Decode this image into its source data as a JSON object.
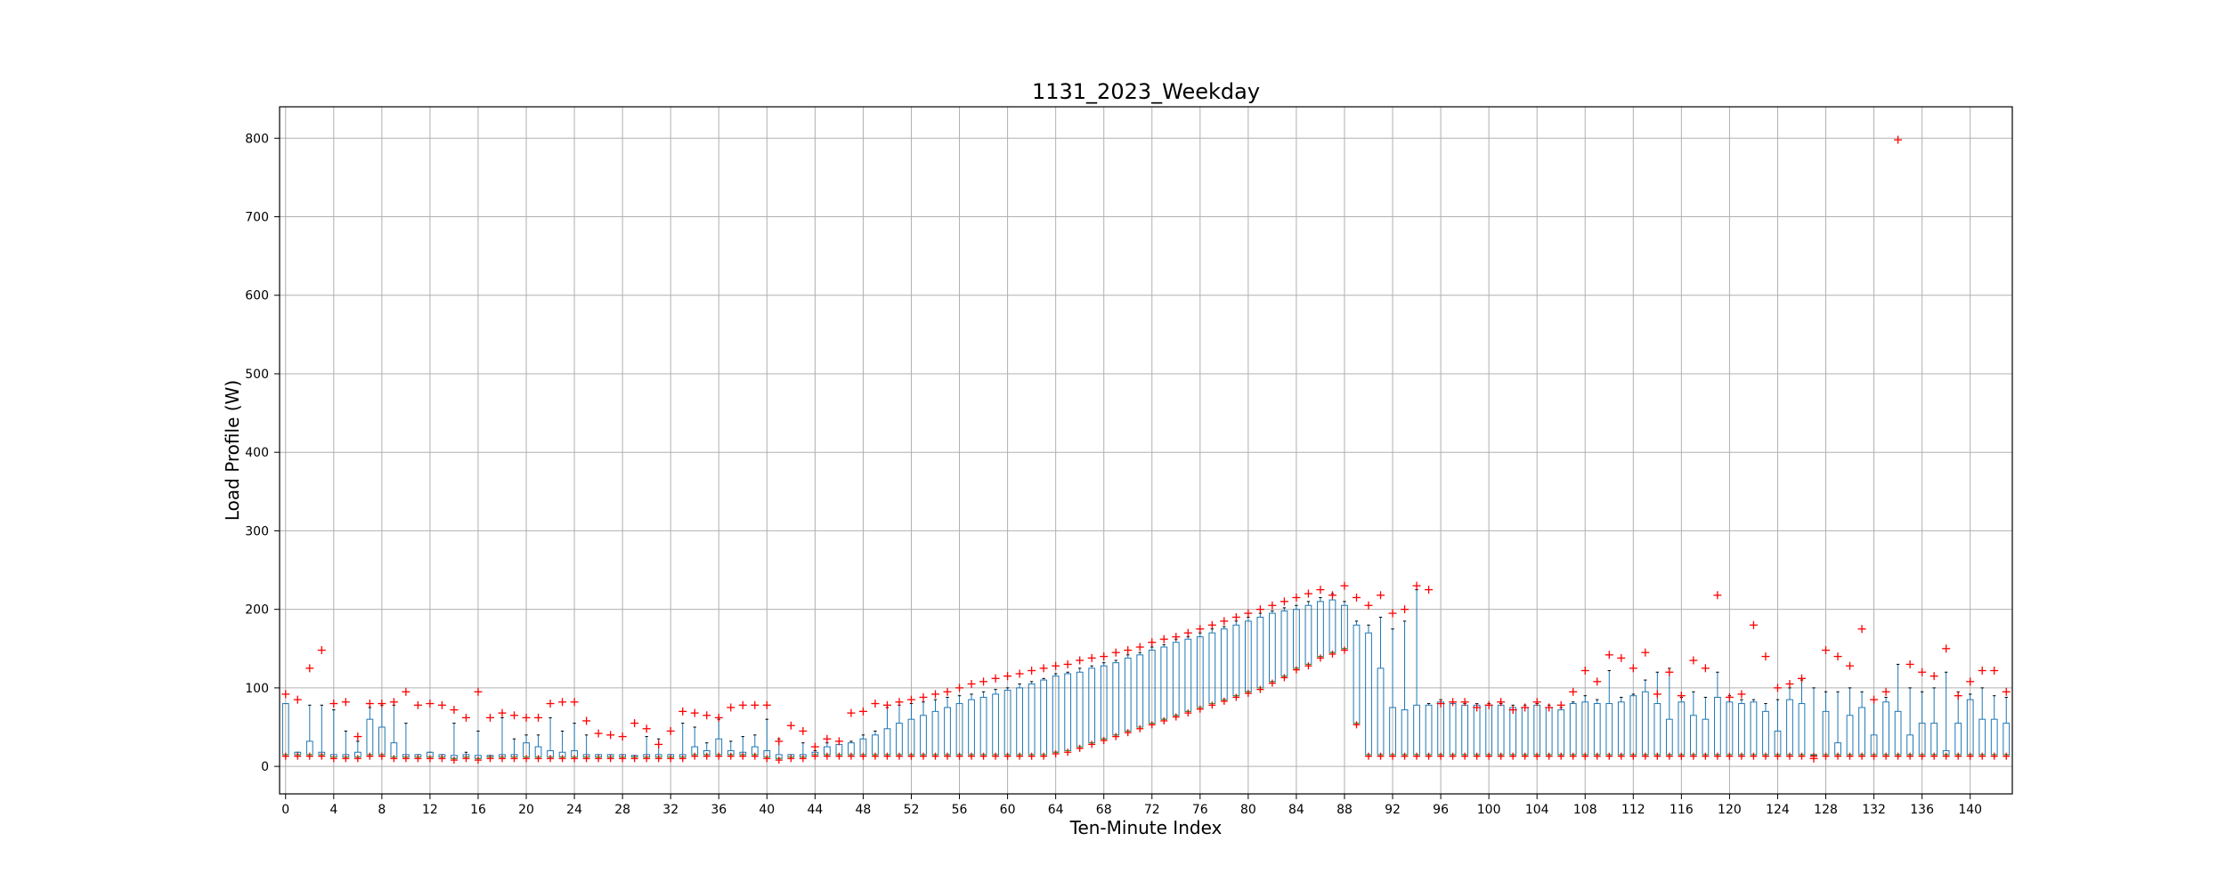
{
  "chart_data": {
    "type": "box",
    "title": "1131_2023_Weekday",
    "xlabel": "Ten-Minute Index",
    "ylabel": "Load Profile (W)",
    "xlim": [
      -0.5,
      143.5
    ],
    "ylim": [
      -35,
      840
    ],
    "x_ticks": [
      0,
      4,
      8,
      12,
      16,
      20,
      24,
      28,
      32,
      36,
      40,
      44,
      48,
      52,
      56,
      60,
      64,
      68,
      72,
      76,
      80,
      84,
      88,
      92,
      96,
      100,
      104,
      108,
      112,
      116,
      120,
      124,
      128,
      132,
      136,
      140
    ],
    "y_ticks": [
      0,
      100,
      200,
      300,
      400,
      500,
      600,
      700,
      800
    ],
    "grid": true,
    "colors": {
      "box": "#1f77b4",
      "median": "#2ca02c",
      "flier": "#ff0000",
      "grid": "#b0b0b0"
    },
    "boxes": [
      [
        0,
        15,
        15,
        80,
        80,
        92
      ],
      [
        1,
        15,
        15,
        18,
        18,
        85
      ],
      [
        2,
        15,
        15,
        32,
        78,
        125
      ],
      [
        3,
        15,
        15,
        18,
        78,
        148
      ],
      [
        4,
        12,
        12,
        15,
        72,
        80
      ],
      [
        5,
        12,
        12,
        15,
        45,
        82
      ],
      [
        6,
        12,
        12,
        18,
        32,
        38
      ],
      [
        7,
        15,
        15,
        60,
        75,
        80
      ],
      [
        8,
        15,
        15,
        50,
        78,
        80
      ],
      [
        9,
        12,
        12,
        30,
        78,
        82
      ],
      [
        10,
        12,
        12,
        15,
        55,
        95
      ],
      [
        11,
        12,
        12,
        15,
        15,
        78
      ],
      [
        12,
        12,
        12,
        18,
        18,
        80
      ],
      [
        13,
        12,
        12,
        15,
        15,
        78
      ],
      [
        14,
        10,
        10,
        14,
        55,
        72
      ],
      [
        15,
        12,
        12,
        15,
        18,
        62
      ],
      [
        16,
        10,
        10,
        14,
        45,
        95
      ],
      [
        17,
        12,
        12,
        14,
        14,
        62
      ],
      [
        18,
        12,
        12,
        15,
        62,
        68
      ],
      [
        19,
        12,
        12,
        15,
        35,
        65
      ],
      [
        20,
        12,
        12,
        30,
        40,
        62
      ],
      [
        21,
        12,
        12,
        25,
        40,
        62
      ],
      [
        22,
        12,
        12,
        20,
        62,
        80
      ],
      [
        23,
        12,
        12,
        18,
        45,
        82
      ],
      [
        24,
        12,
        12,
        20,
        55,
        82
      ],
      [
        25,
        12,
        12,
        15,
        40,
        58
      ],
      [
        26,
        12,
        12,
        15,
        15,
        42
      ],
      [
        27,
        12,
        12,
        15,
        15,
        40
      ],
      [
        28,
        12,
        12,
        15,
        15,
        38
      ],
      [
        29,
        12,
        12,
        14,
        14,
        55
      ],
      [
        30,
        12,
        12,
        15,
        38,
        48
      ],
      [
        31,
        12,
        12,
        15,
        35,
        28
      ],
      [
        32,
        12,
        12,
        15,
        15,
        45
      ],
      [
        33,
        12,
        12,
        15,
        55,
        70
      ],
      [
        34,
        15,
        15,
        25,
        50,
        68
      ],
      [
        35,
        15,
        15,
        20,
        30,
        65
      ],
      [
        36,
        15,
        15,
        35,
        60,
        62
      ],
      [
        37,
        15,
        15,
        20,
        32,
        75
      ],
      [
        38,
        15,
        15,
        18,
        38,
        78
      ],
      [
        39,
        15,
        15,
        25,
        40,
        78
      ],
      [
        40,
        12,
        12,
        20,
        60,
        78
      ],
      [
        41,
        10,
        10,
        15,
        35,
        32
      ],
      [
        42,
        12,
        12,
        15,
        15,
        52
      ],
      [
        43,
        12,
        12,
        15,
        30,
        45
      ],
      [
        44,
        15,
        15,
        18,
        20,
        25
      ],
      [
        45,
        15,
        15,
        25,
        30,
        35
      ],
      [
        46,
        15,
        15,
        28,
        32,
        32
      ],
      [
        47,
        15,
        15,
        30,
        32,
        68
      ],
      [
        48,
        15,
        15,
        35,
        40,
        70
      ],
      [
        49,
        15,
        15,
        40,
        45,
        80
      ],
      [
        50,
        15,
        15,
        48,
        75,
        78
      ],
      [
        51,
        15,
        15,
        55,
        78,
        82
      ],
      [
        52,
        15,
        15,
        60,
        80,
        85
      ],
      [
        53,
        15,
        15,
        65,
        82,
        88
      ],
      [
        54,
        15,
        15,
        70,
        85,
        92
      ],
      [
        55,
        15,
        15,
        75,
        88,
        95
      ],
      [
        56,
        15,
        15,
        80,
        90,
        100
      ],
      [
        57,
        15,
        15,
        85,
        92,
        105
      ],
      [
        58,
        15,
        15,
        88,
        95,
        108
      ],
      [
        59,
        15,
        15,
        92,
        98,
        112
      ],
      [
        60,
        15,
        15,
        97,
        100,
        115
      ],
      [
        61,
        15,
        15,
        100,
        105,
        118
      ],
      [
        62,
        15,
        15,
        105,
        108,
        122
      ],
      [
        63,
        15,
        15,
        110,
        112,
        125
      ],
      [
        64,
        18,
        18,
        115,
        118,
        128
      ],
      [
        65,
        20,
        20,
        118,
        120,
        130
      ],
      [
        66,
        25,
        25,
        120,
        125,
        135
      ],
      [
        67,
        30,
        30,
        125,
        128,
        138
      ],
      [
        68,
        35,
        35,
        128,
        132,
        140
      ],
      [
        69,
        40,
        40,
        132,
        135,
        145
      ],
      [
        70,
        45,
        45,
        138,
        142,
        148
      ],
      [
        71,
        50,
        50,
        142,
        145,
        152
      ],
      [
        72,
        55,
        55,
        148,
        152,
        158
      ],
      [
        73,
        60,
        60,
        152,
        155,
        162
      ],
      [
        74,
        65,
        65,
        158,
        162,
        165
      ],
      [
        75,
        70,
        70,
        162,
        165,
        170
      ],
      [
        76,
        75,
        75,
        165,
        170,
        175
      ],
      [
        77,
        80,
        80,
        170,
        175,
        180
      ],
      [
        78,
        85,
        85,
        175,
        178,
        185
      ],
      [
        79,
        90,
        90,
        180,
        185,
        190
      ],
      [
        80,
        95,
        95,
        185,
        190,
        195
      ],
      [
        81,
        100,
        100,
        190,
        195,
        200
      ],
      [
        82,
        108,
        108,
        195,
        198,
        205
      ],
      [
        83,
        115,
        115,
        198,
        202,
        210
      ],
      [
        84,
        125,
        125,
        200,
        205,
        215
      ],
      [
        85,
        130,
        130,
        205,
        210,
        220
      ],
      [
        86,
        140,
        140,
        210,
        215,
        225
      ],
      [
        87,
        145,
        145,
        212,
        220,
        218
      ],
      [
        88,
        150,
        150,
        205,
        210,
        230
      ],
      [
        89,
        55,
        55,
        180,
        185,
        215
      ],
      [
        90,
        15,
        15,
        170,
        180,
        205
      ],
      [
        91,
        15,
        15,
        125,
        190,
        218
      ],
      [
        92,
        15,
        15,
        75,
        175,
        195
      ],
      [
        93,
        15,
        15,
        72,
        185,
        200
      ],
      [
        94,
        15,
        15,
        78,
        225,
        230
      ],
      [
        95,
        15,
        15,
        78,
        80,
        225
      ],
      [
        96,
        15,
        15,
        82,
        85,
        80
      ],
      [
        97,
        15,
        15,
        80,
        82,
        82
      ],
      [
        98,
        15,
        15,
        78,
        80,
        82
      ],
      [
        99,
        15,
        15,
        78,
        80,
        75
      ],
      [
        100,
        15,
        15,
        78,
        80,
        78
      ],
      [
        101,
        15,
        15,
        78,
        80,
        82
      ],
      [
        102,
        15,
        15,
        75,
        78,
        72
      ],
      [
        103,
        15,
        15,
        75,
        78,
        75
      ],
      [
        104,
        15,
        15,
        78,
        80,
        82
      ],
      [
        105,
        15,
        15,
        75,
        78,
        75
      ],
      [
        106,
        15,
        15,
        72,
        75,
        78
      ],
      [
        107,
        15,
        15,
        80,
        82,
        95
      ],
      [
        108,
        15,
        15,
        82,
        90,
        122
      ],
      [
        109,
        15,
        15,
        80,
        85,
        108
      ],
      [
        110,
        15,
        15,
        80,
        122,
        142
      ],
      [
        111,
        15,
        15,
        82,
        88,
        138
      ],
      [
        112,
        15,
        15,
        90,
        92,
        125
      ],
      [
        113,
        15,
        15,
        95,
        110,
        145
      ],
      [
        114,
        15,
        15,
        80,
        120,
        92
      ],
      [
        115,
        15,
        15,
        60,
        125,
        120
      ],
      [
        116,
        15,
        15,
        82,
        88,
        90
      ],
      [
        117,
        15,
        15,
        65,
        95,
        135
      ],
      [
        118,
        15,
        15,
        60,
        88,
        125
      ],
      [
        119,
        15,
        15,
        88,
        120,
        218
      ],
      [
        120,
        15,
        15,
        82,
        90,
        88
      ],
      [
        121,
        15,
        15,
        80,
        85,
        92
      ],
      [
        122,
        15,
        15,
        82,
        85,
        180
      ],
      [
        123,
        15,
        15,
        70,
        80,
        140
      ],
      [
        124,
        15,
        15,
        45,
        85,
        100
      ],
      [
        125,
        15,
        15,
        85,
        100,
        105
      ],
      [
        126,
        15,
        15,
        80,
        110,
        112
      ],
      [
        127,
        15,
        15,
        15,
        100,
        10
      ],
      [
        128,
        15,
        15,
        70,
        95,
        148
      ],
      [
        129,
        15,
        15,
        30,
        95,
        140
      ],
      [
        130,
        15,
        15,
        65,
        100,
        128
      ],
      [
        131,
        15,
        15,
        75,
        95,
        175
      ],
      [
        132,
        15,
        15,
        40,
        85,
        85
      ],
      [
        133,
        15,
        15,
        82,
        88,
        95
      ],
      [
        134,
        15,
        15,
        70,
        130,
        798
      ],
      [
        135,
        15,
        15,
        40,
        100,
        130
      ],
      [
        136,
        15,
        15,
        55,
        95,
        120
      ],
      [
        137,
        15,
        15,
        55,
        100,
        115
      ],
      [
        138,
        15,
        15,
        20,
        120,
        150
      ],
      [
        139,
        15,
        15,
        55,
        95,
        90
      ],
      [
        140,
        15,
        15,
        85,
        92,
        108
      ],
      [
        141,
        15,
        15,
        60,
        100,
        122
      ],
      [
        142,
        15,
        15,
        60,
        90,
        122
      ],
      [
        143,
        15,
        15,
        55,
        88,
        95
      ]
    ]
  }
}
